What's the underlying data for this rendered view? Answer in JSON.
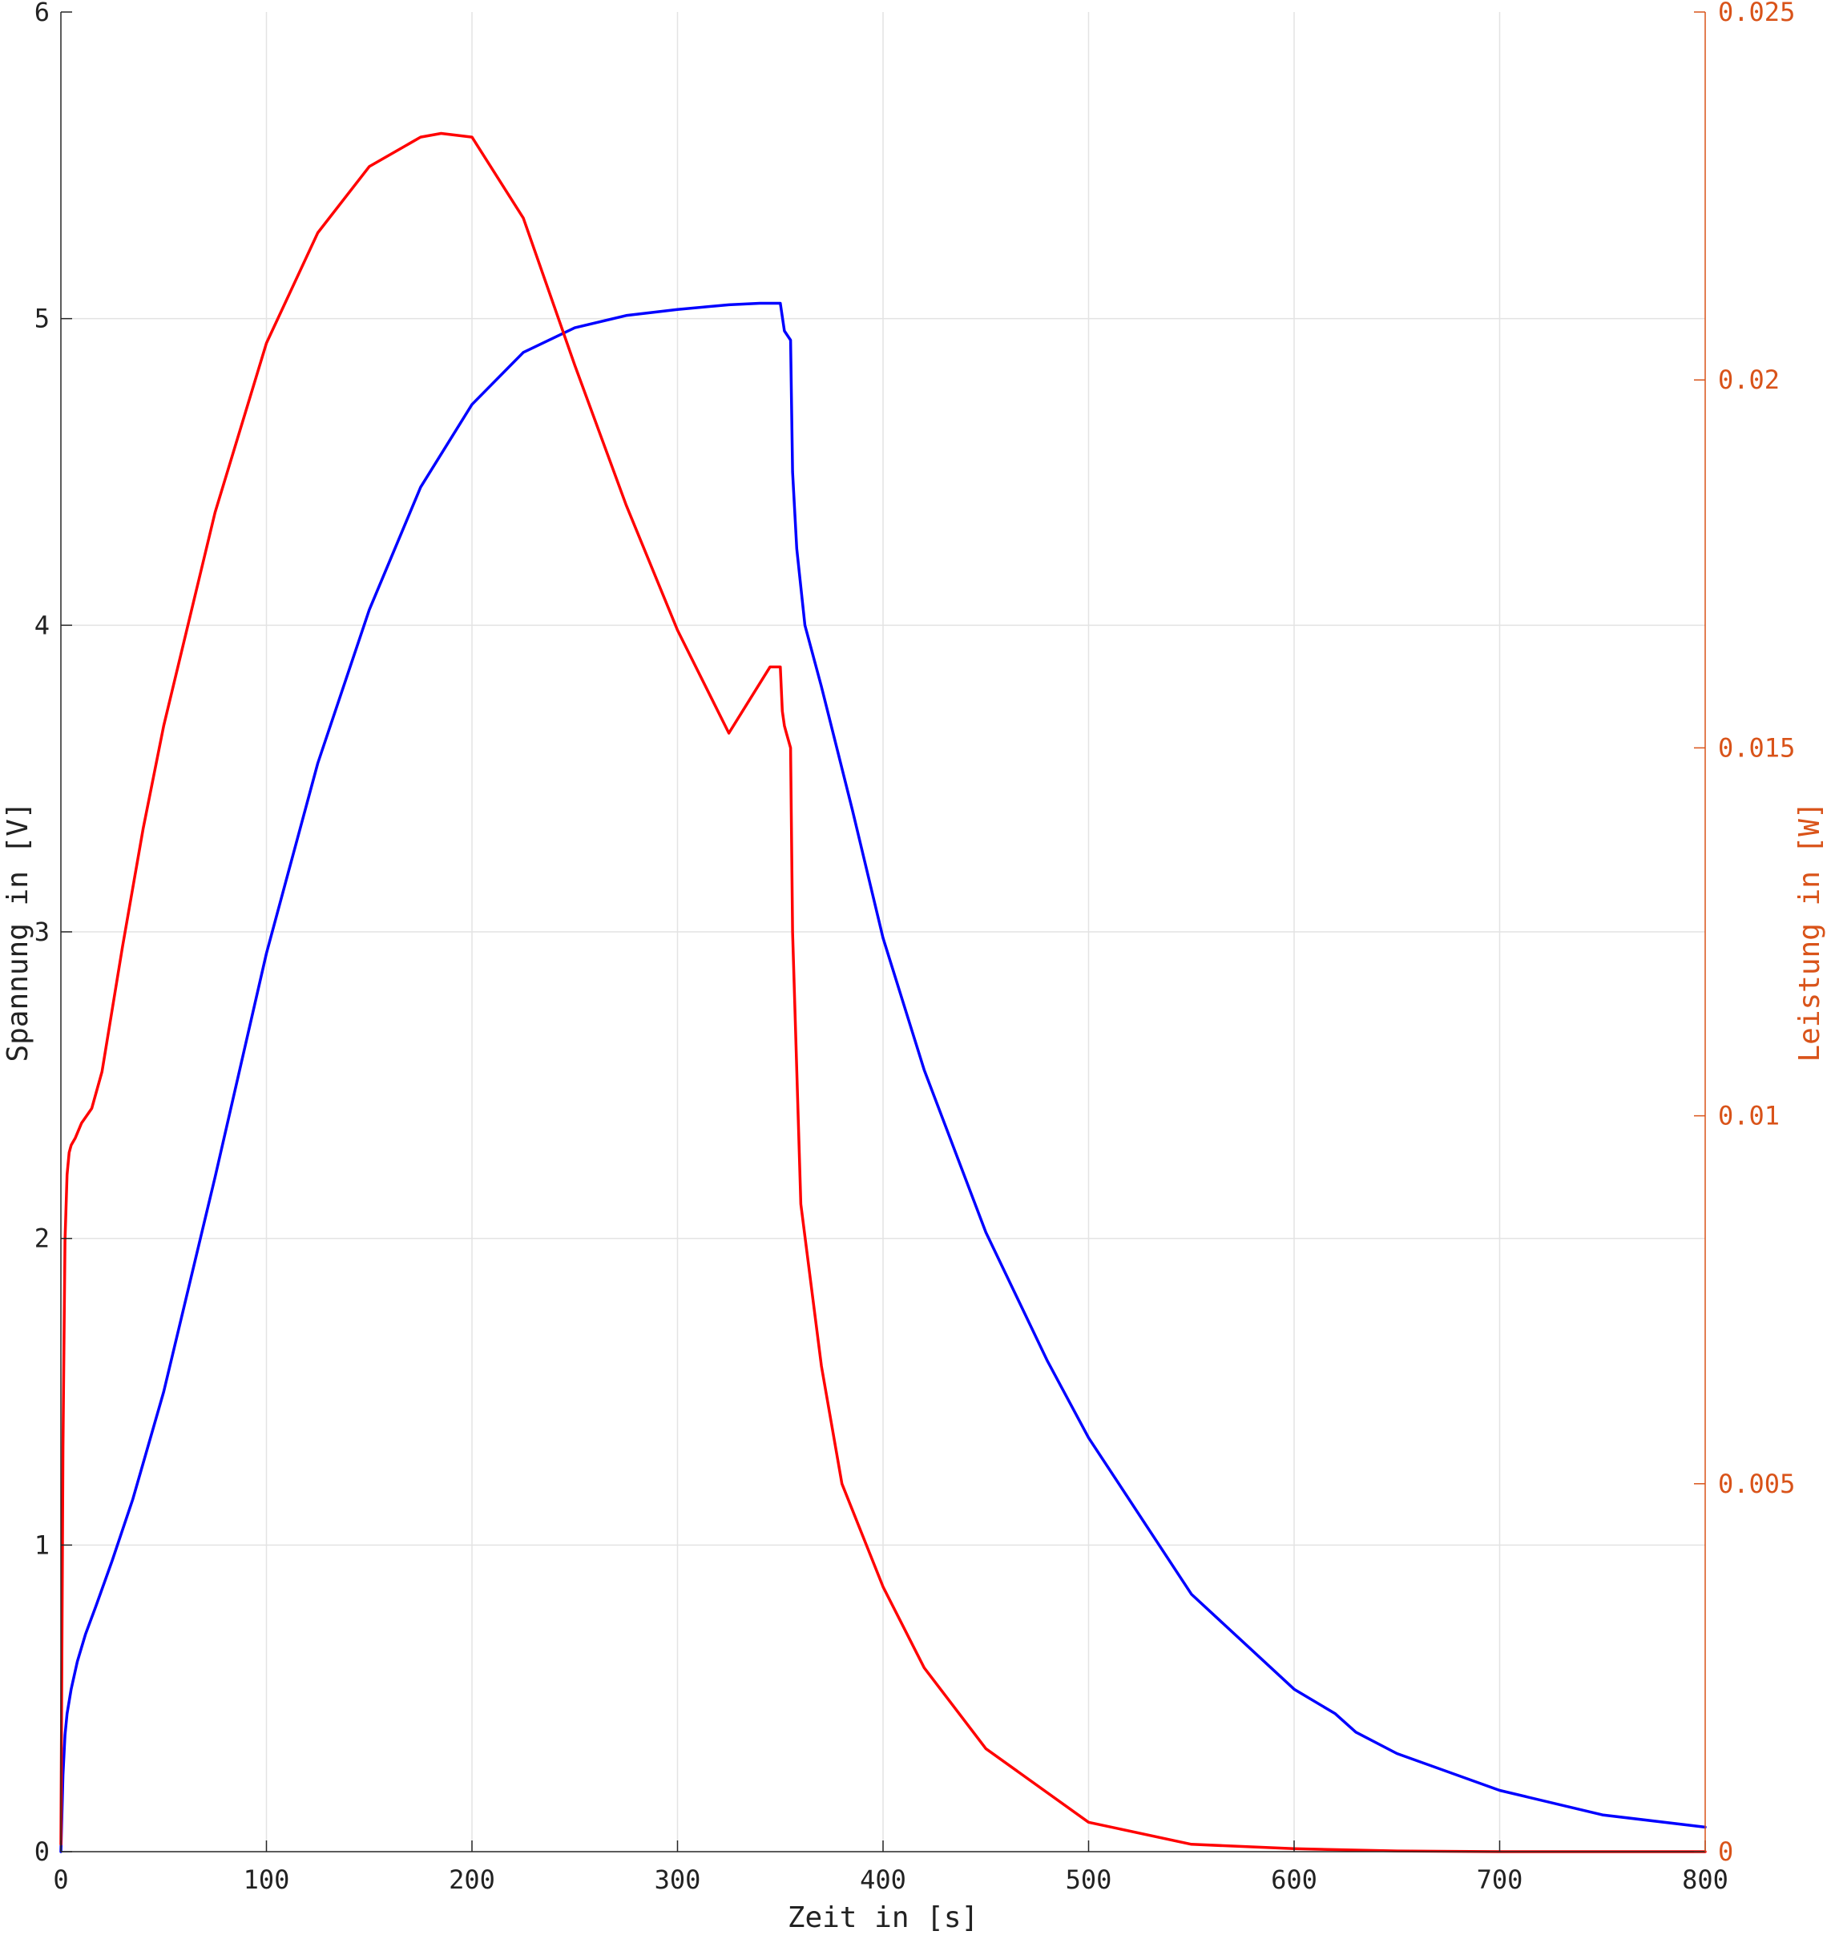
{
  "chart_data": {
    "type": "line",
    "title": "",
    "xlabel": "Zeit in [s]",
    "ylabel_left": "Spannung in [V]",
    "ylabel_right": "Leistung in [W]",
    "xlim": [
      0,
      800
    ],
    "ylim_left": [
      0,
      6
    ],
    "ylim_right": [
      0,
      0.025
    ],
    "x_ticks": [
      "0",
      "100",
      "200",
      "300",
      "400",
      "500",
      "600",
      "700",
      "800"
    ],
    "y_left_ticks": [
      "0",
      "1",
      "2",
      "3",
      "4",
      "5",
      "6"
    ],
    "y_right_ticks": [
      "0",
      "0.005",
      "0.01",
      "0.015",
      "0.02",
      "0.025"
    ],
    "grid": true,
    "colors": {
      "voltage": "#0000ff",
      "power": "#ff0000",
      "right_axis": "#d95319"
    },
    "series": [
      {
        "axis": "left",
        "x": [
          0,
          1,
          2,
          3,
          5,
          8,
          12,
          17,
          25,
          35,
          50,
          75,
          100,
          125,
          150,
          175,
          200,
          225,
          250,
          275,
          300,
          325,
          340,
          350,
          352,
          354,
          355,
          356,
          358,
          362,
          370,
          385,
          400,
          420,
          450,
          480,
          500,
          550,
          600,
          620,
          630,
          650,
          700,
          750,
          800
        ],
        "y": [
          0,
          0.25,
          0.38,
          0.45,
          0.53,
          0.62,
          0.71,
          0.8,
          0.95,
          1.15,
          1.5,
          2.2,
          2.93,
          3.55,
          4.05,
          4.45,
          4.72,
          4.89,
          4.97,
          5.01,
          5.03,
          5.045,
          5.05,
          5.05,
          4.96,
          4.94,
          4.93,
          4.5,
          4.25,
          4.0,
          3.8,
          3.4,
          2.98,
          2.55,
          2.02,
          1.6,
          1.35,
          0.84,
          0.53,
          0.45,
          0.39,
          0.32,
          0.2,
          0.12,
          0.08
        ]
      },
      {
        "axis": "right",
        "x": [
          0,
          1,
          2,
          3,
          4,
          5,
          7,
          10,
          15,
          20,
          30,
          40,
          50,
          75,
          100,
          125,
          150,
          175,
          185,
          200,
          225,
          250,
          275,
          300,
          325,
          345,
          350,
          351,
          352,
          353,
          354,
          355,
          356,
          360,
          370,
          380,
          400,
          420,
          450,
          500,
          550,
          600,
          650,
          700,
          750,
          800
        ],
        "y": [
          0.0001,
          0.0055,
          0.0083,
          0.0092,
          0.0095,
          0.0096,
          0.0097,
          0.0099,
          0.0101,
          0.0106,
          0.0123,
          0.0139,
          0.0153,
          0.0182,
          0.0205,
          0.022,
          0.0229,
          0.0233,
          0.02335,
          0.0233,
          0.0222,
          0.0202,
          0.0183,
          0.0166,
          0.0152,
          0.0161,
          0.0161,
          0.0155,
          0.0153,
          0.0152,
          0.0151,
          0.015,
          0.0125,
          0.0088,
          0.0066,
          0.005,
          0.0036,
          0.0025,
          0.0014,
          0.0004,
          0.0001,
          4e-05,
          1e-05,
          0.0,
          0.0,
          0.0
        ]
      }
    ]
  }
}
